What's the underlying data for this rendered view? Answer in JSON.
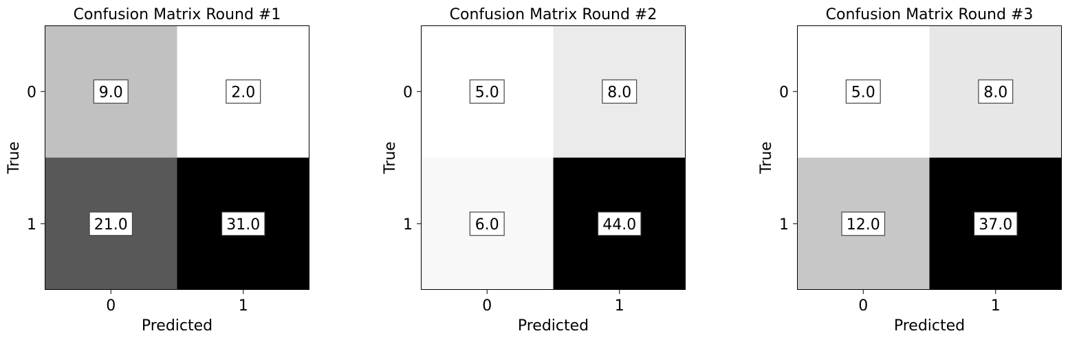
{
  "chart_data": [
    {
      "type": "heatmap",
      "title": "Confusion Matrix Round #1",
      "xlabel": "Predicted",
      "ylabel": "True",
      "x_categories": [
        "0",
        "1"
      ],
      "y_categories": [
        "0",
        "1"
      ],
      "values": [
        [
          9.0,
          2.0
        ],
        [
          21.0,
          31.0
        ]
      ],
      "value_labels": [
        [
          "9.0",
          "2.0"
        ],
        [
          "21.0",
          "31.0"
        ]
      ],
      "colormap": "grays"
    },
    {
      "type": "heatmap",
      "title": "Confusion Matrix Round #2",
      "xlabel": "Predicted",
      "ylabel": "True",
      "x_categories": [
        "0",
        "1"
      ],
      "y_categories": [
        "0",
        "1"
      ],
      "values": [
        [
          5.0,
          8.0
        ],
        [
          6.0,
          44.0
        ]
      ],
      "value_labels": [
        [
          "5.0",
          "8.0"
        ],
        [
          "6.0",
          "44.0"
        ]
      ],
      "colormap": "grays"
    },
    {
      "type": "heatmap",
      "title": "Confusion Matrix Round #3",
      "xlabel": "Predicted",
      "ylabel": "True",
      "x_categories": [
        "0",
        "1"
      ],
      "y_categories": [
        "0",
        "1"
      ],
      "values": [
        [
          5.0,
          8.0
        ],
        [
          12.0,
          37.0
        ]
      ],
      "value_labels": [
        [
          "5.0",
          "8.0"
        ],
        [
          "12.0",
          "37.0"
        ]
      ],
      "colormap": "grays"
    }
  ]
}
